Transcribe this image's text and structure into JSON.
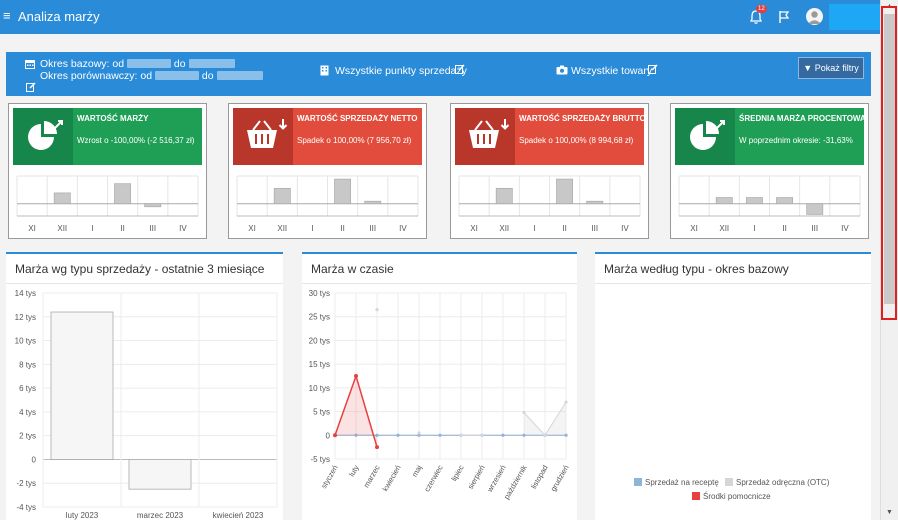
{
  "app": {
    "title": "Analiza marży",
    "notifications_count": "12"
  },
  "filters": {
    "base_period_label": "Okres bazowy: od",
    "comparison_period_label": "Okres porównawczy: od",
    "to_label": "do",
    "points_of_sale": "Wszystkie punkty sprzedaży",
    "products": "Wszystkie towary",
    "show_filters_button": "Pokaż filtry"
  },
  "months_short": [
    "XI",
    "XII",
    "I",
    "II",
    "III",
    "IV"
  ],
  "kpis": [
    {
      "title": "WARTOŚĆ MARŻY",
      "value": "Wzrost o -100,00% (-2 516,37 zł)",
      "color": "green",
      "icon": "pie-chart-up-icon",
      "trend": [
        0,
        3.5,
        0,
        6.5,
        -1,
        0
      ]
    },
    {
      "title": "WARTOŚĆ SPRZEDAŻY NETTO",
      "value": "Spadek o 100,00% (7 956,70 zł)",
      "color": "red",
      "icon": "basket-down-icon",
      "trend": [
        0,
        5,
        0,
        8,
        0.8,
        0
      ]
    },
    {
      "title": "WARTOŚĆ SPRZEDAŻY BRUTTO",
      "value": "Spadek o 100,00% (8 994,68 zł)",
      "color": "red",
      "icon": "basket-down-icon",
      "trend": [
        0,
        5,
        0,
        8,
        0.8,
        0
      ]
    },
    {
      "title": "ŚREDNIA MARŻA PROCENTOWA",
      "value": "W poprzednim okresie: -31,63%",
      "color": "green",
      "icon": "pie-chart-up-icon",
      "trend": [
        0,
        2,
        2,
        2,
        -3.5,
        0
      ]
    }
  ],
  "panels": {
    "by_sale_type": {
      "title": "Marża wg typu sprzedaży - ostatnie 3 miesiące"
    },
    "over_time": {
      "title": "Marża w czasie"
    },
    "by_type_base": {
      "title": "Marża według typu - okres bazowy"
    }
  },
  "chart_data": [
    {
      "type": "bar",
      "title": "Marża wg typu sprzedaży - ostatnie 3 miesiące",
      "categories": [
        "luty 2023",
        "marzec 2023",
        "kwiecień 2023"
      ],
      "series": [
        {
          "values": [
            12400,
            -2500,
            0
          ]
        }
      ],
      "ylim": [
        -4000,
        14000
      ],
      "yticks": [
        "-4 tys",
        "-2 tys",
        "0",
        "2 tys",
        "4 tys",
        "6 tys",
        "8 tys",
        "10 tys",
        "12 tys",
        "14 tys"
      ],
      "grid": true
    },
    {
      "type": "line",
      "title": "Marża w czasie",
      "categories": [
        "styczeń",
        "luty",
        "marzec",
        "kwiecień",
        "maj",
        "czerwiec",
        "lipiec",
        "sierpień",
        "wrzesień",
        "październik",
        "listopad",
        "grudzień"
      ],
      "series": [
        {
          "name": "Sprzedaż na receptę",
          "color": "#8fb4d9",
          "values": [
            0,
            0,
            0,
            0,
            0,
            0,
            0,
            0,
            0,
            0,
            0,
            0
          ]
        },
        {
          "name": "Sprzedaż odręczna (OTC)",
          "color": "#d6d6d6",
          "values": [
            null,
            null,
            26500,
            null,
            500,
            null,
            0,
            0,
            null,
            4800,
            0,
            7000
          ]
        },
        {
          "name": "Środki pomocnicze",
          "color": "#e84040",
          "values": [
            0,
            12500,
            -2500,
            null,
            null,
            null,
            null,
            null,
            null,
            null,
            null,
            null
          ]
        }
      ],
      "ylim": [
        -5000,
        30000
      ],
      "yticks": [
        "-5 tys",
        "0",
        "5 tys",
        "10 tys",
        "15 tys",
        "20 tys",
        "25 tys",
        "30 tys"
      ],
      "grid": true
    },
    {
      "type": "pie",
      "title": "Marża według typu - okres bazowy",
      "legend": [
        {
          "name": "Sprzedaż na receptę",
          "color": "#8fb4d9"
        },
        {
          "name": "Sprzedaż odręczna (OTC)",
          "color": "#d6d6d6"
        },
        {
          "name": "Środki pomocnicze",
          "color": "#e84040"
        }
      ],
      "legend_position": "bottom"
    }
  ]
}
